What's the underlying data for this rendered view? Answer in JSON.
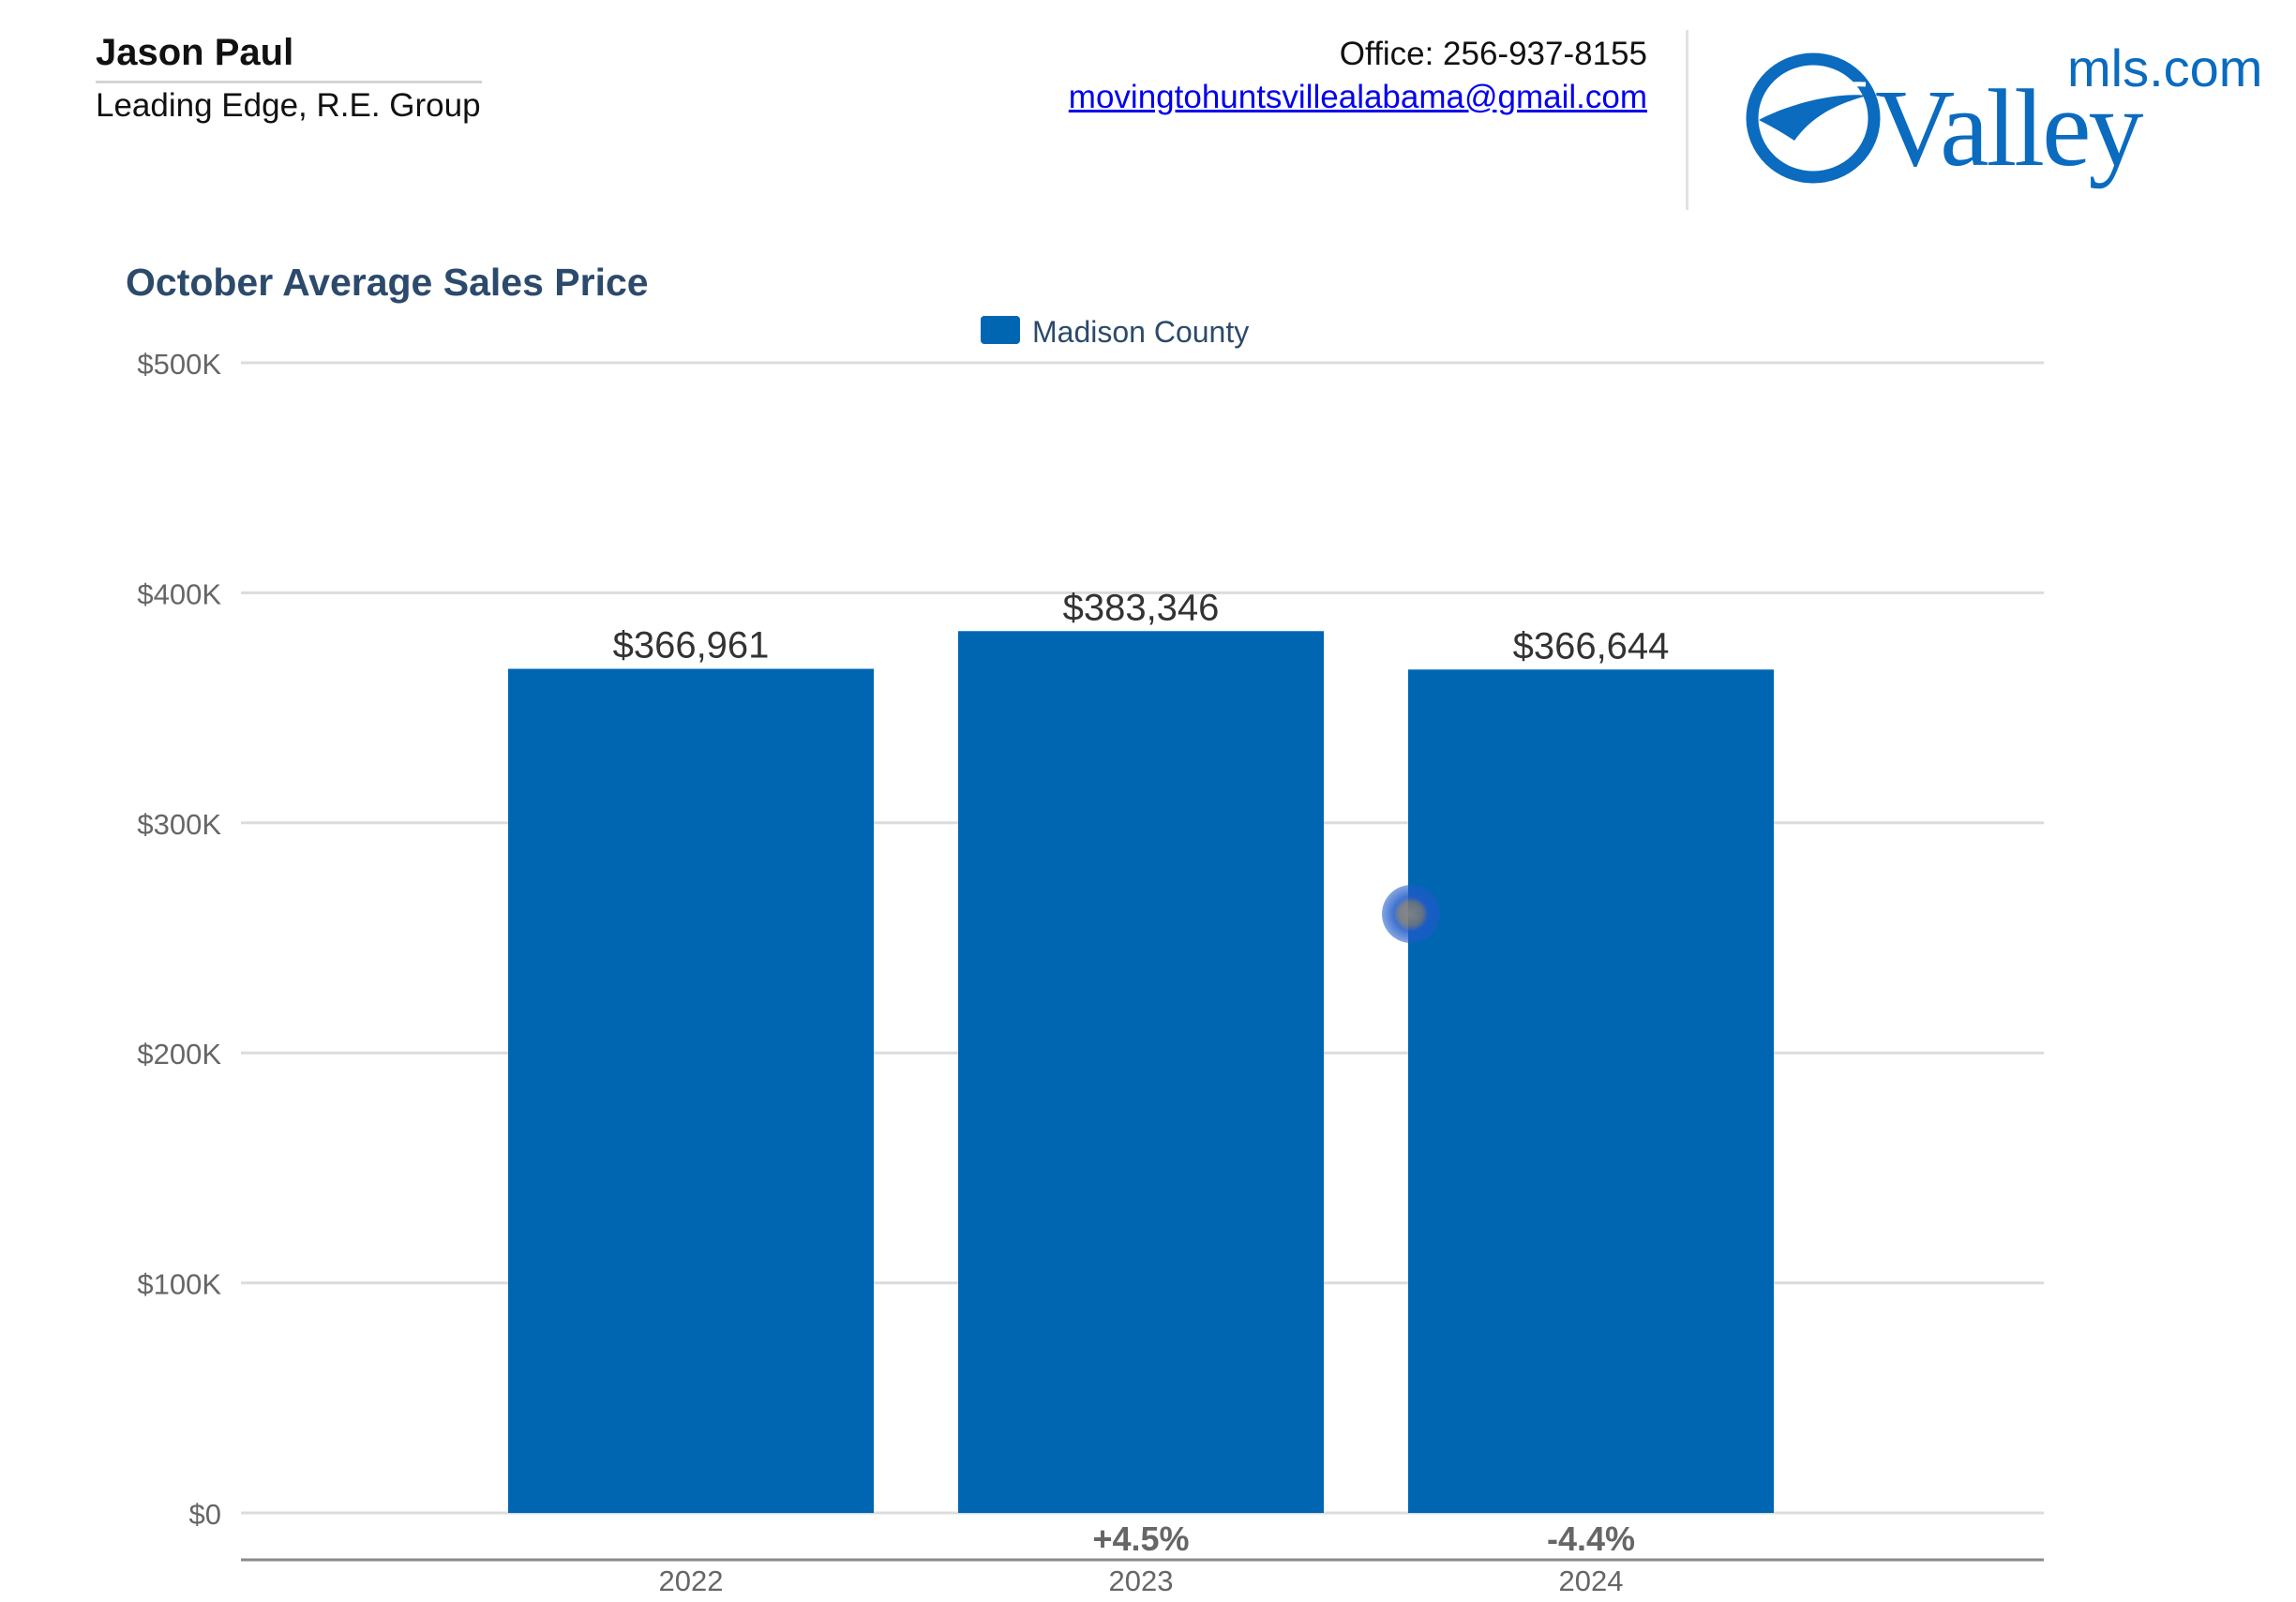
{
  "agent": {
    "name": "Jason Paul",
    "company": "Leading Edge, R.E. Group"
  },
  "contact": {
    "phone": "Office: 256-937-8155",
    "email": "movingtohuntsvillealabama@gmail.com"
  },
  "logo": {
    "wordmark": "Valley",
    "domain": "mls.com",
    "icon": "valley-swoosh-icon"
  },
  "colors": {
    "bar": "#0066b2",
    "title": "#2c4a6b",
    "logo": "#0a6bbf",
    "grid": "#dcdcdc",
    "axis_text": "#666666"
  },
  "chart_data": {
    "type": "bar",
    "title": "October Average Sales Price",
    "legend": "top-center",
    "series": [
      {
        "name": "Madison County",
        "values": [
          366961,
          383346,
          366644
        ],
        "labels": [
          "$366,961",
          "$383,346",
          "$366,644"
        ]
      }
    ],
    "categories": [
      "2022",
      "2023",
      "2024"
    ],
    "changes": [
      "",
      "+4.5%",
      "-4.4%"
    ],
    "ylim": [
      0,
      500000
    ],
    "yticks": [
      0,
      100000,
      200000,
      300000,
      400000,
      500000
    ],
    "ytick_labels": [
      "$0",
      "$100K",
      "$200K",
      "$300K",
      "$400K",
      "$500K"
    ],
    "grid": true
  }
}
